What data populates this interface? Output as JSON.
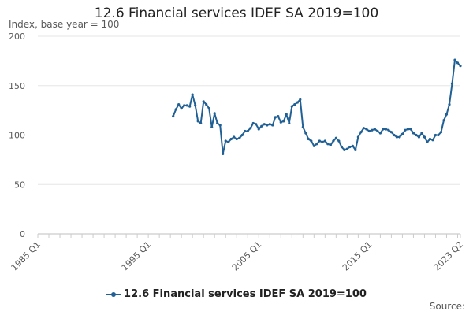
{
  "chart_data": {
    "type": "line",
    "title": "12.6 Financial services IDEF SA 2019=100",
    "ylabel": "Index, base year = 100",
    "ylim": [
      0,
      200
    ],
    "yticks": [
      0,
      50,
      100,
      150,
      200
    ],
    "xlabels": [
      "1985 Q1",
      "1995 Q1",
      "2005 Q1",
      "2015 Q1",
      "2023 Q2"
    ],
    "grid": true,
    "legend": "bottom",
    "series": [
      {
        "name": "12.6 Financial services IDEF SA 2019=100",
        "color": "#206095",
        "x": [
          "1997 Q2",
          "1997 Q3",
          "1997 Q4",
          "1998 Q1",
          "1998 Q2",
          "1998 Q3",
          "1998 Q4",
          "1999 Q1",
          "1999 Q2",
          "1999 Q3",
          "1999 Q4",
          "2000 Q1",
          "2000 Q2",
          "2000 Q3",
          "2000 Q4",
          "2001 Q1",
          "2001 Q2",
          "2001 Q3",
          "2001 Q4",
          "2002 Q1",
          "2002 Q2",
          "2002 Q3",
          "2002 Q4",
          "2003 Q1",
          "2003 Q2",
          "2003 Q3",
          "2003 Q4",
          "2004 Q1",
          "2004 Q2",
          "2004 Q3",
          "2004 Q4",
          "2005 Q1",
          "2005 Q2",
          "2005 Q3",
          "2005 Q4",
          "2006 Q1",
          "2006 Q2",
          "2006 Q3",
          "2006 Q4",
          "2007 Q1",
          "2007 Q2",
          "2007 Q3",
          "2007 Q4",
          "2008 Q1",
          "2008 Q2",
          "2008 Q3",
          "2008 Q4",
          "2009 Q1",
          "2009 Q2",
          "2009 Q3",
          "2009 Q4",
          "2010 Q1",
          "2010 Q2",
          "2010 Q3",
          "2010 Q4",
          "2011 Q1",
          "2011 Q2",
          "2011 Q3",
          "2011 Q4",
          "2012 Q1",
          "2012 Q2",
          "2012 Q3",
          "2012 Q4",
          "2013 Q1",
          "2013 Q2",
          "2013 Q3",
          "2013 Q4",
          "2014 Q1",
          "2014 Q2",
          "2014 Q3",
          "2014 Q4",
          "2015 Q1",
          "2015 Q2",
          "2015 Q3",
          "2015 Q4",
          "2016 Q1",
          "2016 Q2",
          "2016 Q3",
          "2016 Q4",
          "2017 Q1",
          "2017 Q2",
          "2017 Q3",
          "2017 Q4",
          "2018 Q1",
          "2018 Q2",
          "2018 Q3",
          "2018 Q4",
          "2019 Q1",
          "2019 Q2",
          "2019 Q3",
          "2019 Q4",
          "2020 Q1",
          "2020 Q2",
          "2020 Q3",
          "2020 Q4",
          "2021 Q1",
          "2021 Q2",
          "2021 Q3",
          "2021 Q4",
          "2022 Q1",
          "2022 Q2",
          "2022 Q3",
          "2022 Q4",
          "2023 Q1",
          "2023 Q2"
        ],
        "values": [
          119,
          126,
          131,
          127,
          130,
          130,
          129,
          141,
          130,
          114,
          112,
          134,
          131,
          127,
          108,
          122,
          112,
          110,
          81,
          94,
          93,
          96,
          98,
          96,
          97,
          100,
          104,
          104,
          107,
          112,
          111,
          106,
          109,
          111,
          110,
          111,
          110,
          118,
          119,
          113,
          114,
          121,
          112,
          129,
          131,
          133,
          136,
          108,
          102,
          96,
          94,
          89,
          91,
          94,
          93,
          94,
          91,
          90,
          94,
          97,
          94,
          88,
          85,
          86,
          88,
          89,
          85,
          98,
          103,
          107,
          106,
          104,
          105,
          106,
          104,
          102,
          106,
          106,
          105,
          103,
          100,
          98,
          98,
          101,
          105,
          106,
          106,
          102,
          100,
          98,
          102,
          98,
          93,
          96,
          95,
          100,
          100,
          103,
          115,
          121,
          131,
          152,
          176,
          173,
          170
        ]
      }
    ],
    "source_label": "Source:"
  }
}
